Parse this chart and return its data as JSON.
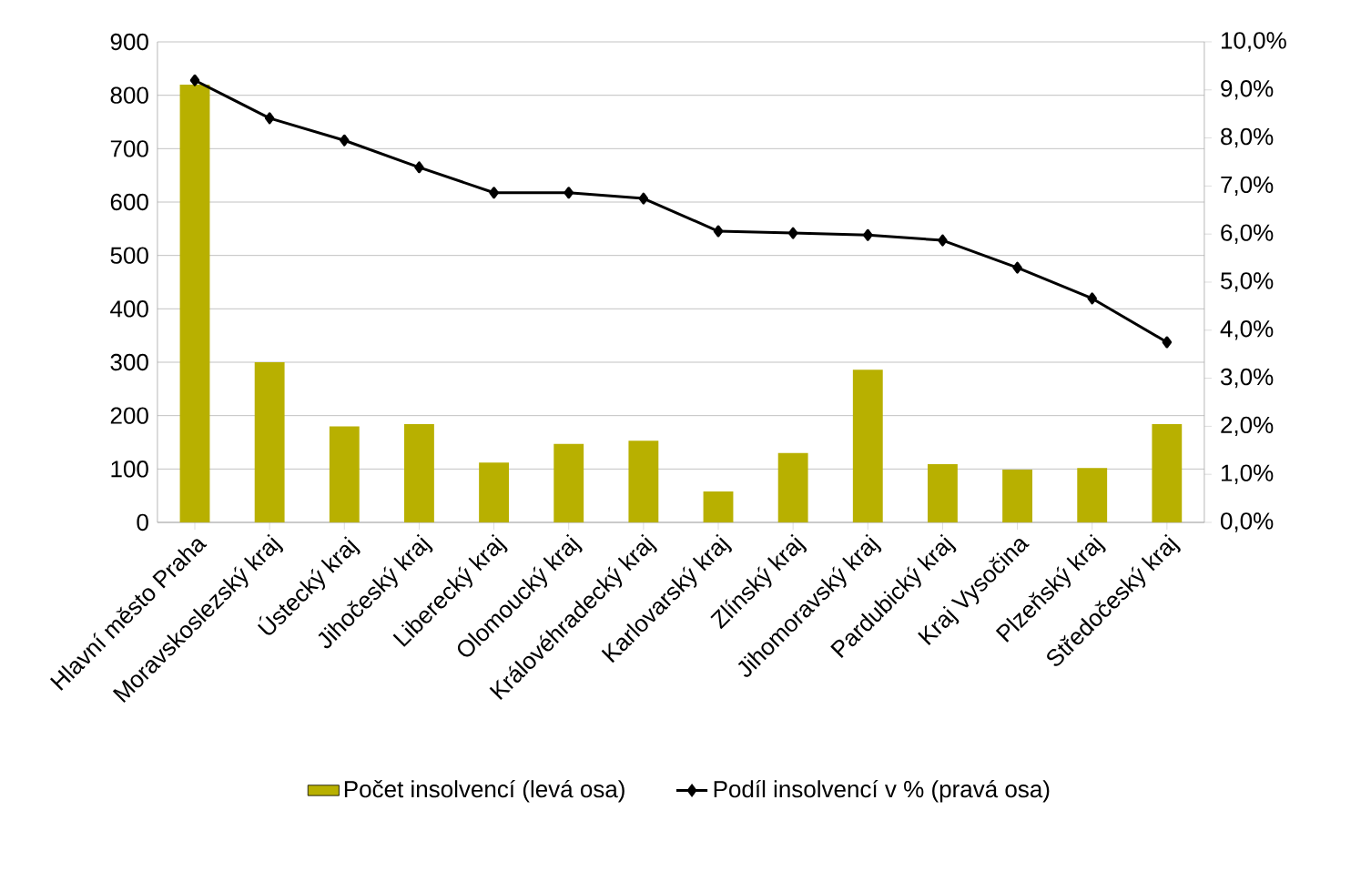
{
  "chart_data": {
    "type": "bar",
    "categories": [
      "Hlavní město Praha",
      "Moravskoslezský kraj",
      "Ústecký kraj",
      "Jihočeský kraj",
      "Liberecký kraj",
      "Olomoucký kraj",
      "Královéhradecký kraj",
      "Karlovarský kraj",
      "Zlínský kraj",
      "Jihomoravský kraj",
      "Pardubický kraj",
      "Kraj Vysočina",
      "Plzeňský kraj",
      "Středočeský kraj"
    ],
    "series": [
      {
        "name": "Počet insolvencí (levá osa)",
        "color": "#b8b000",
        "values": [
          820,
          300,
          180,
          184,
          112,
          147,
          153,
          58,
          130,
          286,
          109,
          99,
          102,
          184
        ]
      },
      {
        "name": "Podíl insolvencí v % (pravá osa)",
        "type": "line",
        "axis": "y2",
        "color": "#000000",
        "values": [
          9.2,
          8.41,
          7.95,
          7.39,
          6.86,
          6.86,
          6.74,
          6.06,
          6.02,
          5.98,
          5.87,
          5.3,
          4.66,
          3.75
        ]
      }
    ],
    "marker": "diamond",
    "ylim": [
      0,
      900
    ],
    "yticks": [
      0,
      100,
      200,
      300,
      400,
      500,
      600,
      700,
      800,
      900
    ],
    "y2lim": [
      0,
      10
    ],
    "y2ticks": [
      {
        "value": 0,
        "label": "0,0%"
      },
      {
        "value": 1,
        "label": "1,0%"
      },
      {
        "value": 2,
        "label": "2,0%"
      },
      {
        "value": 3,
        "label": "3,0%"
      },
      {
        "value": 4,
        "label": "4,0%"
      },
      {
        "value": 5,
        "label": "5,0%"
      },
      {
        "value": 6,
        "label": "6,0%"
      },
      {
        "value": 7,
        "label": "7,0%"
      },
      {
        "value": 8,
        "label": "8,0%"
      },
      {
        "value": 9,
        "label": "9,0%"
      },
      {
        "value": 10,
        "label": "10,0%"
      }
    ],
    "grid": "y",
    "legend": "bottom"
  }
}
